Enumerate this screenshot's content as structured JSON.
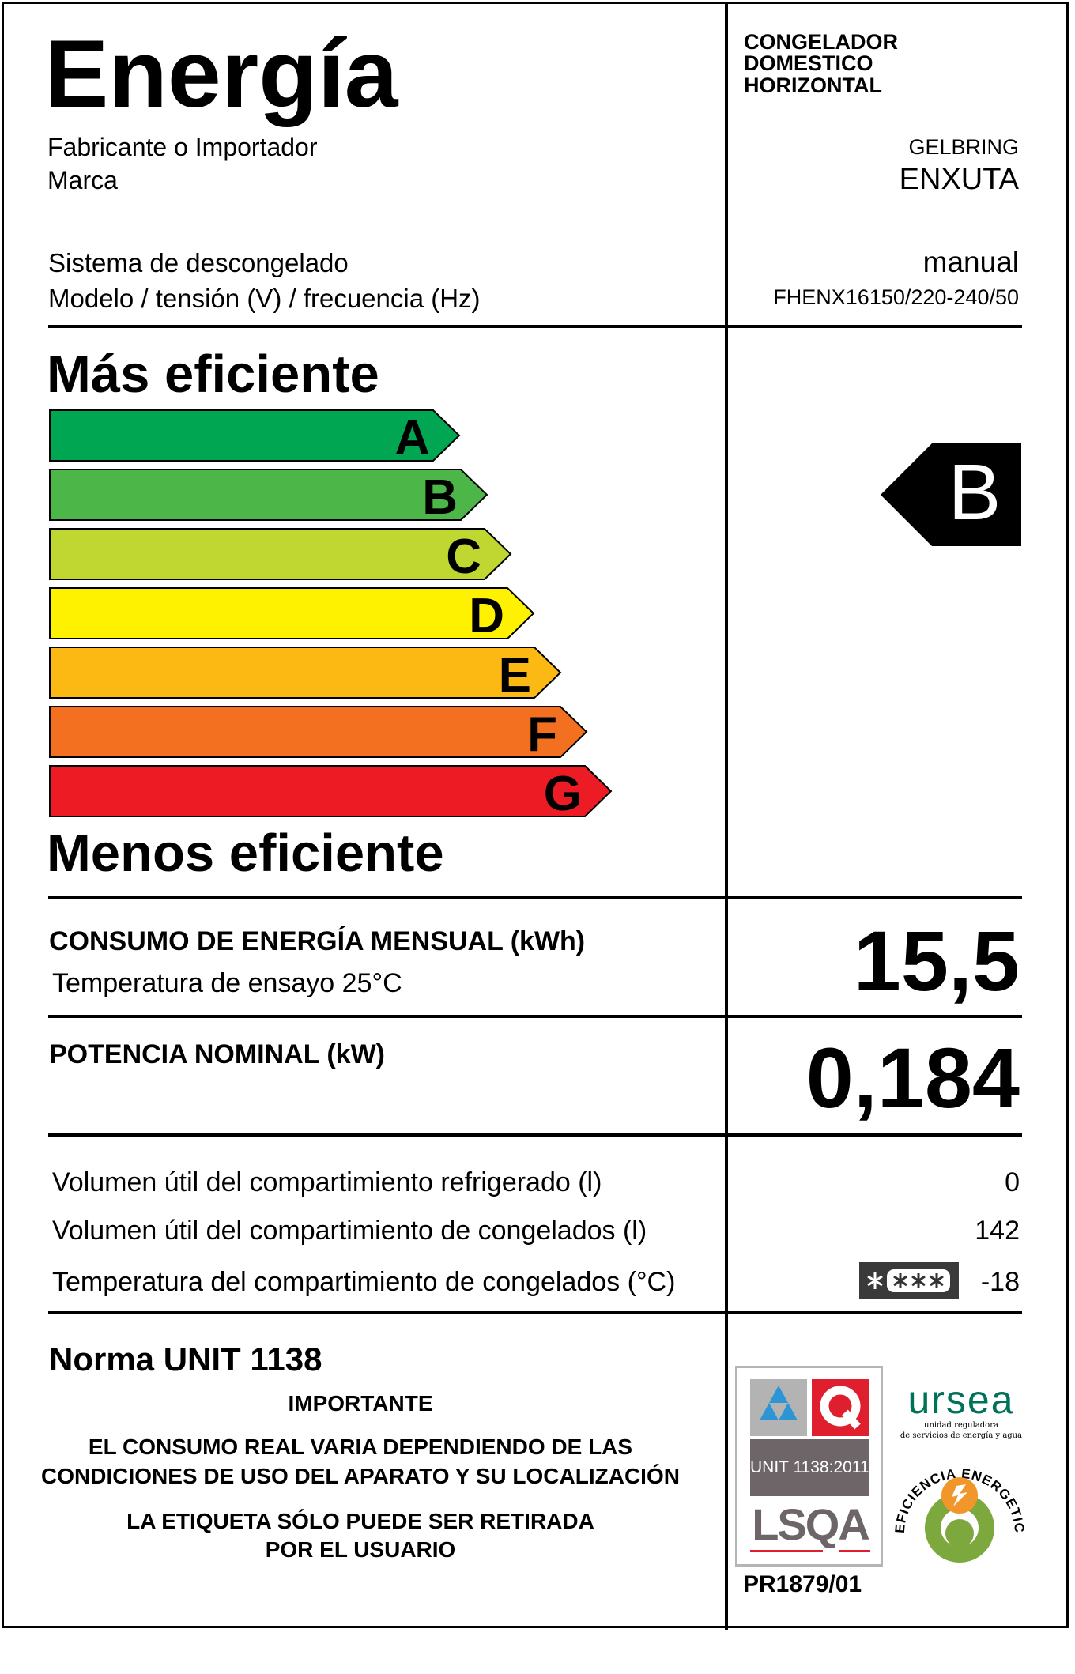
{
  "header": {
    "title": "Energía",
    "appliance_type": [
      "CONGELADOR",
      "DOMESTICO",
      "HORIZONTAL"
    ],
    "manufacturer_label": "Fabricante o Importador",
    "manufacturer_value": "GELBRING",
    "brand_label": "Marca",
    "brand_value": "ENXUTA",
    "defrost_label": "Sistema de descongelado",
    "defrost_value": "manual",
    "model_label": "Modelo / tensión (V) / frecuencia (Hz)",
    "model_value": "FHENX16150/220-240/50"
  },
  "scale": {
    "top_label": "Más eficiente",
    "bottom_label": "Menos eficiente",
    "classes": [
      {
        "letter": "A",
        "color": "#00a651"
      },
      {
        "letter": "B",
        "color": "#4cb748"
      },
      {
        "letter": "C",
        "color": "#bfd730"
      },
      {
        "letter": "D",
        "color": "#fff200"
      },
      {
        "letter": "E",
        "color": "#fdb913"
      },
      {
        "letter": "F",
        "color": "#f37021"
      },
      {
        "letter": "G",
        "color": "#ed1c24"
      }
    ],
    "rating": "B"
  },
  "consumption": {
    "label": "CONSUMO DE ENERGÍA MENSUAL (kWh)",
    "sublabel": "Temperatura de ensayo 25°C",
    "value": "15,5"
  },
  "power": {
    "label": "POTENCIA NOMINAL (kW)",
    "value": "0,184"
  },
  "volumes": [
    {
      "label": "Volumen útil del compartimiento refrigerado (l)",
      "value": "0"
    },
    {
      "label": "Volumen útil del compartimiento de congelados (l)",
      "value": "142"
    },
    {
      "label": "Temperatura del compartimiento de congelados (°C)",
      "value": "-18",
      "stars": "4-star"
    }
  ],
  "footer": {
    "norm": "Norma UNIT 1138",
    "important": "IMPORTANTE",
    "notice_lines": [
      "EL CONSUMO REAL VARIA DEPENDIENDO DE LAS",
      "CONDICIONES DE USO DEL APARATO Y SU LOCALIZACIÓN"
    ],
    "removal_lines": [
      "LA ETIQUETA SÓLO PUEDE SER RETIRADA",
      "POR EL USUARIO"
    ],
    "cert_code": "PR1879/01"
  },
  "logos": {
    "lsqa_norm": "UNIT 1138:2011",
    "lsqa": "LSQA",
    "ursea": "ursea",
    "ursea_sub1": "unidad reguladora",
    "ursea_sub2": "de servicios de energía y agua",
    "efficiency_seal": "EFICIENCIA ENERGETICA"
  }
}
